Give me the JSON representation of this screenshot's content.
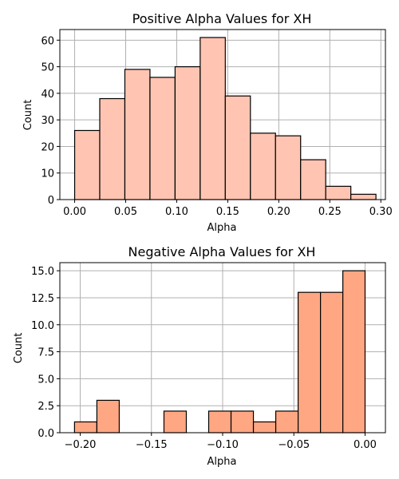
{
  "chart_data": [
    {
      "type": "bar",
      "title": "Positive Alpha Values for XH",
      "xlabel": "Alpha",
      "ylabel": "Count",
      "xlim": [
        -0.0145,
        0.3045
      ],
      "ylim": [
        0,
        64
      ],
      "xticks": [
        0.0,
        0.05,
        0.1,
        0.15,
        0.2,
        0.25,
        0.3
      ],
      "xtick_labels": [
        "0.00",
        "0.05",
        "0.10",
        "0.15",
        "0.20",
        "0.25",
        "0.30"
      ],
      "yticks": [
        0,
        10,
        20,
        30,
        40,
        50,
        60
      ],
      "ytick_labels": [
        "0",
        "10",
        "20",
        "30",
        "40",
        "50",
        "60"
      ],
      "grid": true,
      "color": "#ffc5b2",
      "bin_edges": [
        0.0,
        0.0246,
        0.0492,
        0.0738,
        0.0984,
        0.123,
        0.1476,
        0.1722,
        0.1968,
        0.2214,
        0.246,
        0.2706,
        0.2952
      ],
      "values": [
        26,
        38,
        49,
        46,
        50,
        61,
        39,
        25,
        24,
        15,
        5,
        2
      ]
    },
    {
      "type": "bar",
      "title": "Negative Alpha Values for XH",
      "xlabel": "Alpha",
      "ylabel": "Count",
      "xlim": [
        -0.2143,
        0.0143
      ],
      "ylim": [
        0,
        15.75
      ],
      "xticks": [
        -0.2,
        -0.15,
        -0.1,
        -0.05,
        0.0
      ],
      "xtick_labels": [
        "−0.20",
        "−0.15",
        "−0.10",
        "−0.05",
        "0.00"
      ],
      "yticks": [
        0,
        2.5,
        5.0,
        7.5,
        10.0,
        12.5,
        15.0
      ],
      "ytick_labels": [
        "0.0",
        "2.5",
        "5.0",
        "7.5",
        "10.0",
        "12.5",
        "15.0"
      ],
      "grid": true,
      "color": "#ffa783",
      "bin_edges": [
        -0.204,
        -0.1883,
        -0.1726,
        -0.1569,
        -0.1412,
        -0.1255,
        -0.1098,
        -0.0941,
        -0.0784,
        -0.0627,
        -0.047,
        -0.0313,
        -0.0156,
        0.0
      ],
      "values": [
        1,
        3,
        0,
        0,
        2,
        0,
        2,
        2,
        1,
        2,
        13,
        13,
        15
      ]
    }
  ]
}
